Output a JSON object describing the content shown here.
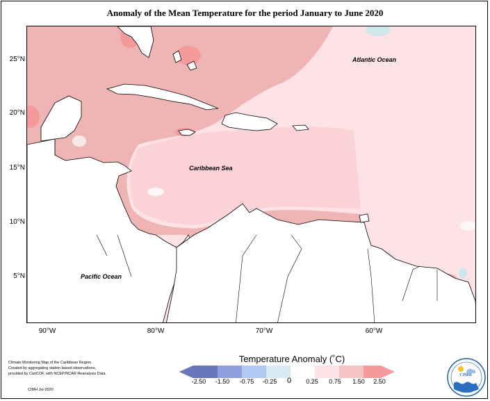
{
  "title": "Anomaly of the Mean Temperature for the period January to June 2020",
  "map": {
    "latitude_ticks": [
      "25°N",
      "20°N",
      "15°N",
      "10°N",
      "5°N"
    ],
    "longitude_ticks": [
      "90°W",
      "80°W",
      "70°W",
      "60°W"
    ],
    "labels": {
      "atlantic": "Atlantic Ocean",
      "caribbean": "Caribbean Sea",
      "pacific": "Pacific Ocean"
    },
    "colors": {
      "ocean_light": "#fde3e5",
      "band_medium": "#efb5b5",
      "band_warm": "#f59a9a",
      "cool_spot": "#cfe6ea",
      "land": "#ffffff"
    }
  },
  "legend": {
    "title": "Temperature Anomaly (˚C)",
    "ticks": [
      "-2.50",
      "-1.50",
      "-0.75",
      "-0.25",
      "0",
      "0.25",
      "0.75",
      "1.50",
      "2.50"
    ],
    "colors": [
      "#6677bb",
      "#8f9fe0",
      "#b1c8f2",
      "#d7ebf2",
      "#ffffff",
      "#fde3e5",
      "#f6c2c6",
      "#f59a9a"
    ]
  },
  "credit": {
    "line1": "Climate Monitoring Map of the Caribbean Region.",
    "line2": "Created by aggregating station based observations,",
    "line3": "provided by CariCOF, with NCEP/NCAR Reanalysis Data.",
    "date": "CIMH  Jul-2020"
  },
  "logo": {
    "text": "CIMH"
  }
}
